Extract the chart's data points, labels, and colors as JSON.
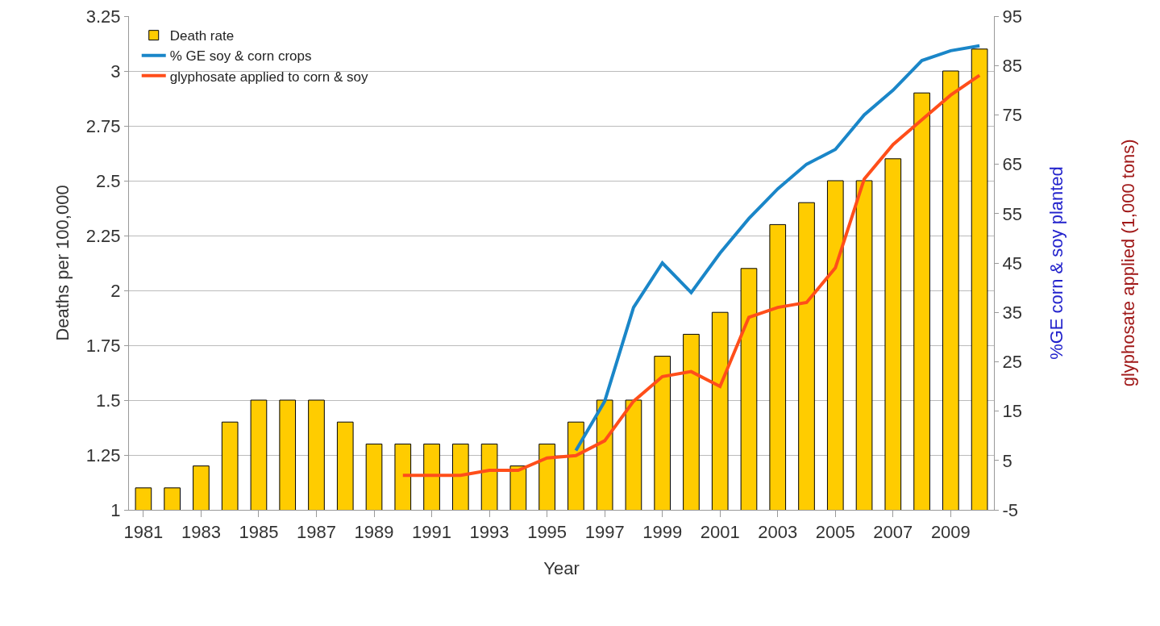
{
  "chart_data": {
    "type": "bar",
    "xlabel": "Year",
    "ylabel": "Deaths per 100,000",
    "y2label": "%GE corn & soy planted",
    "annotations": [
      "glyphosate applied (1,000 tons)"
    ],
    "categories": [
      "1981",
      null,
      "1983",
      null,
      "1985",
      null,
      "1987",
      null,
      "1989",
      null,
      "1991",
      null,
      "1993",
      null,
      "1995",
      null,
      "1997",
      null,
      "1999",
      null,
      "2001",
      null,
      "2003",
      null,
      "2005",
      null,
      "2007",
      null,
      "2009",
      null
    ],
    "series": [
      {
        "name": "Death rate",
        "color": "#ffcc00",
        "values": [
          1.1,
          1.1,
          1.2,
          1.4,
          1.5,
          1.5,
          1.5,
          1.4,
          1.3,
          1.3,
          1.3,
          1.3,
          1.3,
          1.2,
          1.3,
          1.4,
          1.5,
          1.5,
          1.7,
          1.8,
          1.9,
          2.1,
          2.3,
          2.4,
          2.5,
          2.5,
          2.6,
          2.9,
          3.0,
          3.1
        ]
      },
      {
        "name": "% GE soy & corn crops",
        "type": "line",
        "axis": "y2",
        "color": "#1a86c8",
        "values": [
          null,
          null,
          null,
          null,
          null,
          null,
          null,
          null,
          null,
          null,
          null,
          null,
          null,
          null,
          null,
          7,
          17,
          36,
          45,
          39,
          47,
          54,
          60,
          65,
          68,
          75,
          80,
          86,
          88,
          89
        ]
      },
      {
        "name": "glyphosate applied to corn & soy",
        "type": "line",
        "axis": "y2",
        "color": "#ff4e1a",
        "values": [
          null,
          null,
          null,
          null,
          null,
          null,
          null,
          null,
          null,
          2,
          2,
          2,
          3,
          3,
          5.5,
          6,
          9,
          17,
          22,
          23,
          20,
          34,
          36,
          37,
          44,
          62,
          69,
          74,
          79,
          83
        ]
      }
    ],
    "ylim": [
      1,
      3.25
    ],
    "yticks": [
      1,
      1.25,
      1.5,
      1.75,
      2,
      2.25,
      2.5,
      2.75,
      3,
      3.25
    ],
    "y2lim": [
      -5,
      95
    ],
    "y2ticks": [
      -5,
      5,
      15,
      25,
      35,
      45,
      55,
      65,
      75,
      85,
      95
    ],
    "grid": "y",
    "legend": "top left",
    "marker": "none",
    "line_style": "solid"
  }
}
